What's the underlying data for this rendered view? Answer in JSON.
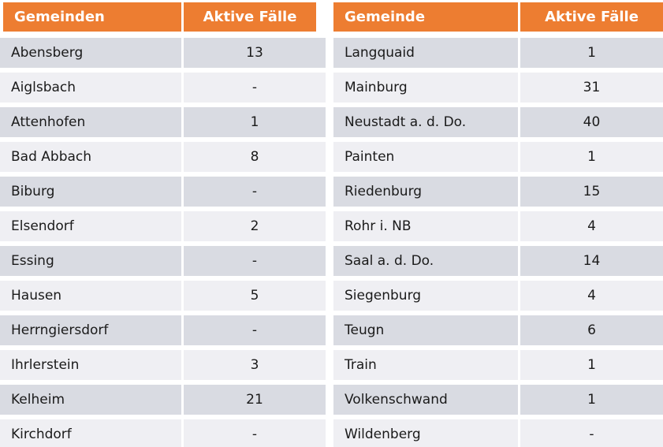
{
  "colors": {
    "header_bg": "#ED7D31",
    "header_text": "#FFFFFF",
    "row_dark": "#D9DBE2",
    "row_light": "#EFEFF3",
    "body_text": "#1A1A1A",
    "background": "#FFFFFF"
  },
  "chart_data": {
    "type": "table",
    "tables": [
      {
        "headers": [
          "Gemeinden",
          "Aktive Fälle"
        ],
        "rows": [
          [
            "Abensberg",
            "13"
          ],
          [
            "Aiglsbach",
            "-"
          ],
          [
            "Attenhofen",
            "1"
          ],
          [
            "Bad Abbach",
            "8"
          ],
          [
            "Biburg",
            "-"
          ],
          [
            "Elsendorf",
            "2"
          ],
          [
            "Essing",
            "-"
          ],
          [
            "Hausen",
            "5"
          ],
          [
            "Herrngiersdorf",
            "-"
          ],
          [
            "Ihrlerstein",
            "3"
          ],
          [
            "Kelheim",
            "21"
          ],
          [
            "Kirchdorf",
            "-"
          ]
        ]
      },
      {
        "headers": [
          "Gemeinde",
          "Aktive Fälle"
        ],
        "rows": [
          [
            "Langquaid",
            "1"
          ],
          [
            "Mainburg",
            "31"
          ],
          [
            "Neustadt a. d. Do.",
            "40"
          ],
          [
            "Painten",
            "1"
          ],
          [
            "Riedenburg",
            "15"
          ],
          [
            "Rohr i. NB",
            "4"
          ],
          [
            "Saal a. d. Do.",
            "14"
          ],
          [
            "Siegenburg",
            "4"
          ],
          [
            "Teugn",
            "6"
          ],
          [
            "Train",
            "1"
          ],
          [
            "Volkenschwand",
            "1"
          ],
          [
            "Wildenberg",
            "-"
          ]
        ]
      }
    ]
  }
}
